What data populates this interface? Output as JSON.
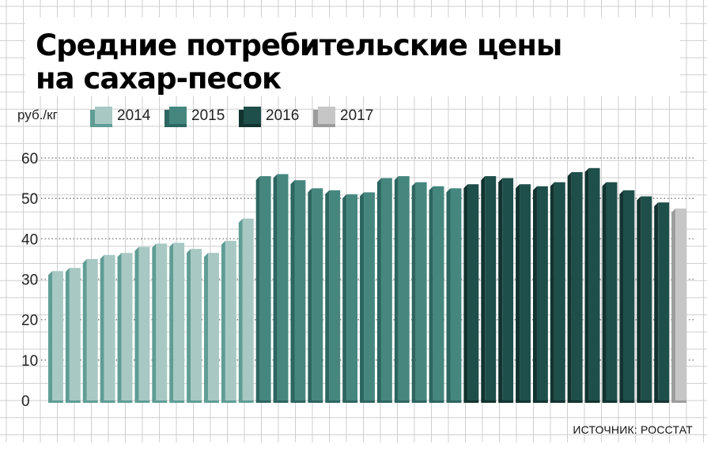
{
  "title": {
    "line1": "Средние потребительские цены",
    "line2": "на сахар-песок"
  },
  "unit_label": "руб./кг",
  "legend": [
    {
      "label": "2014",
      "color": "#a7c8c3",
      "side": "#5f9d95"
    },
    {
      "label": "2015",
      "color": "#45877e",
      "side": "#2c6660"
    },
    {
      "label": "2016",
      "color": "#1e4f4a",
      "side": "#12332f"
    },
    {
      "label": "2017",
      "color": "#c6c6c6",
      "side": "#9c9c9c"
    }
  ],
  "source": "ИСТОЧНИК: РОССТАТ",
  "chart_data": {
    "type": "bar",
    "ylabel": "руб./кг",
    "ylim": [
      0,
      60
    ],
    "yticks": [
      0,
      10,
      20,
      30,
      40,
      50,
      60
    ],
    "series": [
      {
        "name": "2014",
        "values": [
          32.0,
          32.8,
          35.0,
          36.0,
          36.5,
          38.0,
          38.8,
          39.0,
          37.5,
          36.5,
          39.5,
          45.0
        ]
      },
      {
        "name": "2015",
        "values": [
          55.5,
          56.0,
          54.5,
          52.5,
          52.0,
          51.0,
          51.5,
          55.0,
          55.5,
          54.0,
          53.0,
          52.5
        ]
      },
      {
        "name": "2016",
        "values": [
          53.5,
          55.5,
          55.0,
          53.5,
          53.0,
          54.0,
          56.5,
          57.5,
          54.0,
          52.0,
          50.5,
          49.0
        ]
      },
      {
        "name": "2017",
        "values": [
          47.5
        ]
      }
    ],
    "grid": true
  }
}
